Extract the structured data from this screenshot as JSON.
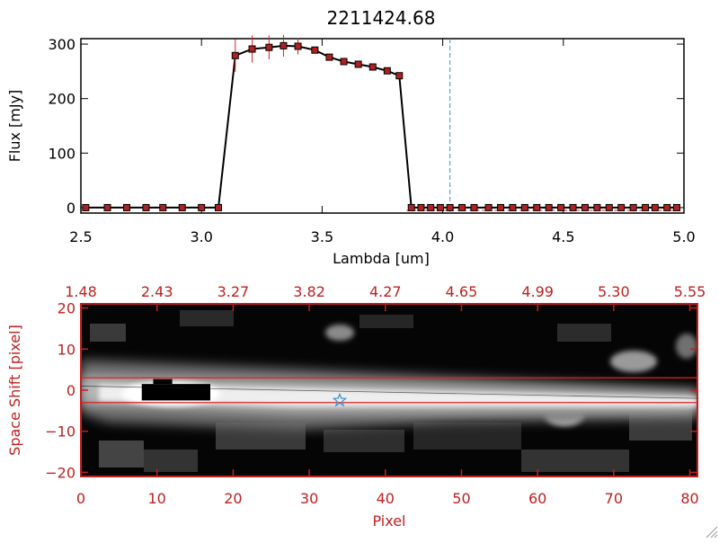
{
  "chart_data": [
    {
      "type": "line",
      "title": "2211424.68",
      "xlabel": "Lambda [um]",
      "ylabel": "Flux [mJy]",
      "xlim": [
        2.5,
        5.0
      ],
      "ylim": [
        -10,
        310
      ],
      "x_ticks": [
        2.5,
        3.0,
        3.5,
        4.0,
        4.5,
        5.0
      ],
      "x_tick_labels": [
        "2.5",
        "3.0",
        "3.5",
        "4.0",
        "4.5",
        "5.0"
      ],
      "y_ticks": [
        0,
        100,
        200,
        300
      ],
      "y_tick_labels": [
        "0",
        "100",
        "200",
        "300"
      ],
      "reference_line_x": 4.03,
      "colors": {
        "line": "#000000",
        "marker": "#b02020",
        "error_bar": "#dd2222",
        "reference_line": "#3b8fd0",
        "baseline": "#dd2222"
      },
      "series": [
        {
          "x": [
            2.52,
            2.61,
            2.69,
            2.77,
            2.84,
            2.92,
            3.0,
            3.07,
            3.14,
            3.21,
            3.28,
            3.34,
            3.4,
            3.47,
            3.53,
            3.59,
            3.65,
            3.71,
            3.77,
            3.82,
            3.87,
            3.91,
            3.95,
            3.99,
            4.03,
            4.08,
            4.13,
            4.19,
            4.24,
            4.29,
            4.34,
            4.39,
            4.44,
            4.49,
            4.54,
            4.59,
            4.64,
            4.69,
            4.74,
            4.79,
            4.84,
            4.88,
            4.93,
            4.97
          ],
          "y": [
            0,
            0,
            0,
            0,
            0,
            0,
            0,
            0,
            279,
            291,
            294,
            297,
            296,
            289,
            276,
            268,
            263,
            258,
            251,
            242,
            0,
            0,
            0,
            0,
            0,
            0,
            0,
            0,
            0,
            0,
            0,
            0,
            0,
            0,
            0,
            0,
            0,
            0,
            0,
            0,
            0,
            0,
            0,
            0
          ],
          "errors": [
            0,
            0,
            0,
            0,
            0,
            0,
            0,
            0,
            30,
            25,
            22,
            20,
            15,
            6,
            4,
            4,
            4,
            4,
            4,
            4,
            0,
            0,
            0,
            0,
            0,
            0,
            0,
            0,
            0,
            0,
            0,
            0,
            0,
            0,
            0,
            0,
            0,
            0,
            0,
            0,
            0,
            0,
            0,
            0
          ]
        }
      ]
    },
    {
      "type": "heatmap",
      "xlabel": "Pixel",
      "ylabel": "Space Shift [pixel]",
      "xlim": [
        0,
        81
      ],
      "ylim": [
        -21,
        21
      ],
      "x_ticks": [
        0,
        10,
        20,
        30,
        40,
        50,
        60,
        70,
        80
      ],
      "x_tick_labels": [
        "0",
        "10",
        "20",
        "30",
        "40",
        "50",
        "60",
        "70",
        "80"
      ],
      "y_ticks": [
        -20,
        -10,
        0,
        10,
        20
      ],
      "y_tick_labels": [
        "−20",
        "−10",
        "0",
        "10",
        "20"
      ],
      "top_axis_label_positions": [
        0,
        10,
        20,
        30,
        40,
        50,
        60,
        70,
        80
      ],
      "top_axis_labels": [
        "1.48",
        "2.43",
        "3.27",
        "3.82",
        "4.27",
        "4.65",
        "4.99",
        "5.30",
        "5.55"
      ],
      "extraction_window": [
        -3,
        3
      ],
      "trace": {
        "start": [
          0,
          1
        ],
        "end": [
          81,
          -2
        ]
      },
      "star_marker": {
        "x": 34,
        "y": -2.5
      },
      "saturated_region": {
        "x": [
          8,
          17
        ],
        "y": [
          -2.5,
          1.5
        ]
      },
      "colors": {
        "axes": "#c02020",
        "window": "#dd2222",
        "star": "#3b8fd0",
        "saturated": "#000000"
      }
    }
  ]
}
